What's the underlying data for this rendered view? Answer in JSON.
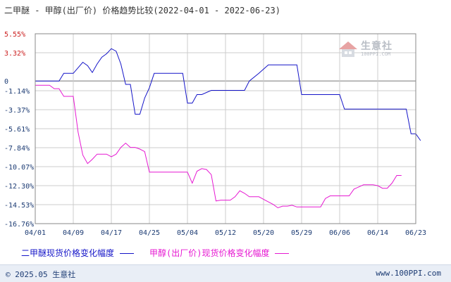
{
  "title": "二甲醚 - 甲醇(出厂价) 价格趋势比较(2022-04-01 - 2022-06-23)",
  "watermark": {
    "name": "生意社",
    "url": "100PPI.COM"
  },
  "footer": {
    "copyright": "© 2025.05 生意社",
    "url": "www.100PPI.com"
  },
  "colors": {
    "series1": "#1414c8",
    "series2": "#e619d2",
    "grid": "#cccccc",
    "frame": "#888888",
    "zero_line": "#777777",
    "x_tick": "#1c3b73",
    "pos_tick": "#cc2222",
    "neg_tick": "#1c3b73",
    "footer_bg": "#e9eef6"
  },
  "chart_data": {
    "type": "line",
    "title": "二甲醚 - 甲醇(出厂价) 价格趋势比较(2022-04-01 - 2022-06-23)",
    "x_labels": [
      "04/01",
      "04/09",
      "04/17",
      "04/25",
      "05/04",
      "05/12",
      "05/20",
      "05/29",
      "06/06",
      "06/14",
      "06/23"
    ],
    "y_ticks": [
      "5.55%",
      "3.32%",
      "0",
      "-1.14%",
      "-3.37%",
      "-5.61%",
      "-7.84%",
      "-10.07%",
      "-12.30%",
      "-14.53%",
      "-16.76%"
    ],
    "ylim": [
      -16.76,
      5.55
    ],
    "grid": true,
    "legend_position": "bottom",
    "series": [
      {
        "name": "二甲醚现货价格变化幅度",
        "values": [
          [
            0,
            0
          ],
          [
            1,
            0
          ],
          [
            5,
            0
          ],
          [
            6,
            0.9
          ],
          [
            8,
            0.9
          ],
          [
            10,
            2.2
          ],
          [
            11,
            1.8
          ],
          [
            12,
            1.0
          ],
          [
            13,
            2.0
          ],
          [
            14,
            2.8
          ],
          [
            15,
            3.2
          ],
          [
            16,
            3.8
          ],
          [
            17,
            3.5
          ],
          [
            18,
            2.0
          ],
          [
            19,
            -0.4
          ],
          [
            20,
            -0.4
          ],
          [
            21,
            -3.9
          ],
          [
            22,
            -3.9
          ],
          [
            23,
            -2.0
          ],
          [
            24,
            -0.8
          ],
          [
            25,
            0.9
          ],
          [
            31,
            0.9
          ],
          [
            32,
            -2.6
          ],
          [
            33,
            -2.6
          ],
          [
            34,
            -1.6
          ],
          [
            35,
            -1.6
          ],
          [
            37,
            -1.1
          ],
          [
            44,
            -1.1
          ],
          [
            45,
            0
          ],
          [
            47,
            0.9
          ],
          [
            49,
            1.9
          ],
          [
            55,
            1.9
          ],
          [
            56,
            -1.6
          ],
          [
            64,
            -1.6
          ],
          [
            65,
            -3.3
          ],
          [
            78,
            -3.3
          ],
          [
            79,
            -6.2
          ],
          [
            80,
            -6.2
          ],
          [
            81,
            -7.0
          ]
        ]
      },
      {
        "name": "甲醇(出厂价)现货价格变化幅度",
        "values": [
          [
            0,
            -0.5
          ],
          [
            3,
            -0.5
          ],
          [
            4,
            -0.9
          ],
          [
            5,
            -0.9
          ],
          [
            6,
            -1.8
          ],
          [
            8,
            -1.8
          ],
          [
            9,
            -6.0
          ],
          [
            10,
            -8.7
          ],
          [
            11,
            -9.7
          ],
          [
            12,
            -9.2
          ],
          [
            13,
            -8.6
          ],
          [
            15,
            -8.6
          ],
          [
            16,
            -8.9
          ],
          [
            17,
            -8.6
          ],
          [
            18,
            -7.8
          ],
          [
            19,
            -7.3
          ],
          [
            20,
            -7.8
          ],
          [
            21,
            -7.8
          ],
          [
            22,
            -8.0
          ],
          [
            23,
            -8.3
          ],
          [
            24,
            -10.7
          ],
          [
            32,
            -10.7
          ],
          [
            33,
            -12.0
          ],
          [
            34,
            -10.6
          ],
          [
            35,
            -10.3
          ],
          [
            36,
            -10.4
          ],
          [
            37,
            -11.0
          ],
          [
            38,
            -14.1
          ],
          [
            39,
            -14.0
          ],
          [
            41,
            -14.0
          ],
          [
            42,
            -13.6
          ],
          [
            43,
            -12.9
          ],
          [
            44,
            -13.2
          ],
          [
            45,
            -13.6
          ],
          [
            47,
            -13.6
          ],
          [
            48,
            -13.9
          ],
          [
            50,
            -14.5
          ],
          [
            51,
            -14.9
          ],
          [
            52,
            -14.7
          ],
          [
            53,
            -14.7
          ],
          [
            54,
            -14.6
          ],
          [
            55,
            -14.8
          ],
          [
            60,
            -14.8
          ],
          [
            61,
            -13.8
          ],
          [
            62,
            -13.5
          ],
          [
            66,
            -13.5
          ],
          [
            67,
            -12.7
          ],
          [
            69,
            -12.2
          ],
          [
            71,
            -12.2
          ],
          [
            72,
            -12.3
          ],
          [
            73,
            -12.6
          ],
          [
            74,
            -12.6
          ],
          [
            75,
            -12.0
          ],
          [
            76,
            -11.1
          ],
          [
            77,
            -11.1
          ]
        ]
      }
    ],
    "x_count": 81
  }
}
